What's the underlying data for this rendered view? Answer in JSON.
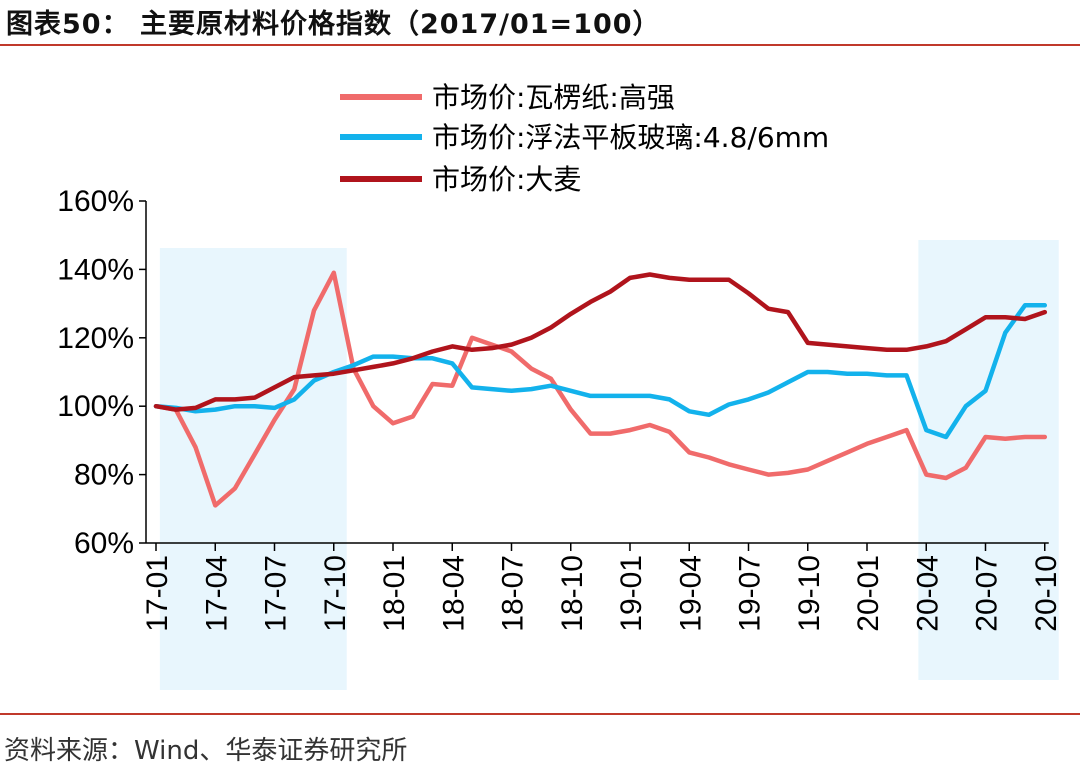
{
  "header": {
    "title": "图表50：   主要原材料价格指数（2017/01=100）"
  },
  "footer": {
    "source": "资料来源：Wind、华泰证券研究所"
  },
  "colors": {
    "series1": "#f06b6b",
    "series2": "#13b2ec",
    "series3": "#b0141c",
    "highlight": "#e8f6fd",
    "rule": "#c0392b"
  },
  "chart_data": {
    "type": "line",
    "ylim": [
      60,
      160
    ],
    "yticks": [
      "60%",
      "80%",
      "100%",
      "120%",
      "140%",
      "160%"
    ],
    "xtick_labels": [
      "17-01",
      "17-04",
      "17-07",
      "17-10",
      "18-01",
      "18-04",
      "18-07",
      "18-10",
      "19-01",
      "19-04",
      "19-07",
      "19-10",
      "20-01",
      "20-04",
      "20-07",
      "20-10"
    ],
    "highlight_ranges": [
      [
        "2017-02",
        "2017-10"
      ],
      [
        "2020-04",
        "2020-10"
      ]
    ],
    "legend_position": "top",
    "grid": false,
    "series": [
      {
        "name": "市场价:瓦楞纸:高强",
        "color": "#f06b6b",
        "points": [
          [
            "2017-01",
            100
          ],
          [
            "2017-02",
            99
          ],
          [
            "2017-03",
            88
          ],
          [
            "2017-04",
            71
          ],
          [
            "2017-05",
            76
          ],
          [
            "2017-06",
            86
          ],
          [
            "2017-07",
            96
          ],
          [
            "2017-08",
            105
          ],
          [
            "2017-09",
            128
          ],
          [
            "2017-10",
            139
          ],
          [
            "2017-11",
            111
          ],
          [
            "2017-12",
            100
          ],
          [
            "2018-01",
            95
          ],
          [
            "2018-02",
            97
          ],
          [
            "2018-03",
            106.5
          ],
          [
            "2018-04",
            106
          ],
          [
            "2018-05",
            120
          ],
          [
            "2018-06",
            118
          ],
          [
            "2018-07",
            116
          ],
          [
            "2018-08",
            111
          ],
          [
            "2018-09",
            108
          ],
          [
            "2018-10",
            99
          ],
          [
            "2018-11",
            92
          ],
          [
            "2018-12",
            92
          ],
          [
            "2019-01",
            93
          ],
          [
            "2019-02",
            94.5
          ],
          [
            "2019-03",
            92.5
          ],
          [
            "2019-04",
            86.5
          ],
          [
            "2019-05",
            85
          ],
          [
            "2019-06",
            83
          ],
          [
            "2019-07",
            81.5
          ],
          [
            "2019-08",
            80
          ],
          [
            "2019-09",
            80.5
          ],
          [
            "2019-10",
            81.5
          ],
          [
            "2019-11",
            84
          ],
          [
            "2019-12",
            86.5
          ],
          [
            "2020-01",
            89
          ],
          [
            "2020-02",
            91
          ],
          [
            "2020-03",
            93
          ],
          [
            "2020-04",
            80
          ],
          [
            "2020-05",
            79
          ],
          [
            "2020-06",
            82
          ],
          [
            "2020-07",
            91
          ],
          [
            "2020-08",
            90.5
          ],
          [
            "2020-09",
            91
          ],
          [
            "2020-10",
            91
          ]
        ]
      },
      {
        "name": "市场价:浮法平板玻璃:4.8/6mm",
        "color": "#13b2ec",
        "points": [
          [
            "2017-01",
            100
          ],
          [
            "2017-02",
            99.5
          ],
          [
            "2017-03",
            98.5
          ],
          [
            "2017-04",
            99
          ],
          [
            "2017-05",
            100
          ],
          [
            "2017-06",
            100
          ],
          [
            "2017-07",
            99.5
          ],
          [
            "2017-08",
            102
          ],
          [
            "2017-09",
            107.5
          ],
          [
            "2017-10",
            110
          ],
          [
            "2017-11",
            112
          ],
          [
            "2017-12",
            114.5
          ],
          [
            "2018-01",
            114.5
          ],
          [
            "2018-02",
            114
          ],
          [
            "2018-03",
            114
          ],
          [
            "2018-04",
            112.5
          ],
          [
            "2018-05",
            105.5
          ],
          [
            "2018-06",
            105
          ],
          [
            "2018-07",
            104.5
          ],
          [
            "2018-08",
            105
          ],
          [
            "2018-09",
            106
          ],
          [
            "2018-10",
            104.5
          ],
          [
            "2018-11",
            103
          ],
          [
            "2018-12",
            103
          ],
          [
            "2019-01",
            103
          ],
          [
            "2019-02",
            103
          ],
          [
            "2019-03",
            102
          ],
          [
            "2019-04",
            98.5
          ],
          [
            "2019-05",
            97.5
          ],
          [
            "2019-06",
            100.5
          ],
          [
            "2019-07",
            102
          ],
          [
            "2019-08",
            104
          ],
          [
            "2019-09",
            107
          ],
          [
            "2019-10",
            110
          ],
          [
            "2019-11",
            110
          ],
          [
            "2019-12",
            109.5
          ],
          [
            "2020-01",
            109.5
          ],
          [
            "2020-02",
            109
          ],
          [
            "2020-03",
            109
          ],
          [
            "2020-04",
            93
          ],
          [
            "2020-05",
            91
          ],
          [
            "2020-06",
            100
          ],
          [
            "2020-07",
            104.5
          ],
          [
            "2020-08",
            121.5
          ],
          [
            "2020-09",
            129.5
          ],
          [
            "2020-10",
            129.5
          ]
        ]
      },
      {
        "name": "市场价:大麦",
        "color": "#b0141c",
        "points": [
          [
            "2017-01",
            100
          ],
          [
            "2017-02",
            99
          ],
          [
            "2017-03",
            99.5
          ],
          [
            "2017-04",
            102
          ],
          [
            "2017-05",
            102
          ],
          [
            "2017-06",
            102.5
          ],
          [
            "2017-07",
            105.5
          ],
          [
            "2017-08",
            108.5
          ],
          [
            "2017-09",
            109
          ],
          [
            "2017-10",
            109.5
          ],
          [
            "2017-11",
            110.5
          ],
          [
            "2017-12",
            111.5
          ],
          [
            "2018-01",
            112.5
          ],
          [
            "2018-02",
            114
          ],
          [
            "2018-03",
            116
          ],
          [
            "2018-04",
            117.5
          ],
          [
            "2018-05",
            116.5
          ],
          [
            "2018-06",
            117
          ],
          [
            "2018-07",
            118
          ],
          [
            "2018-08",
            120
          ],
          [
            "2018-09",
            123
          ],
          [
            "2018-10",
            127
          ],
          [
            "2018-11",
            130.5
          ],
          [
            "2018-12",
            133.5
          ],
          [
            "2019-01",
            137.5
          ],
          [
            "2019-02",
            138.5
          ],
          [
            "2019-03",
            137.5
          ],
          [
            "2019-04",
            137
          ],
          [
            "2019-05",
            137
          ],
          [
            "2019-06",
            137
          ],
          [
            "2019-07",
            133
          ],
          [
            "2019-08",
            128.5
          ],
          [
            "2019-09",
            127.5
          ],
          [
            "2019-10",
            118.5
          ],
          [
            "2019-11",
            118
          ],
          [
            "2019-12",
            117.5
          ],
          [
            "2020-01",
            117
          ],
          [
            "2020-02",
            116.5
          ],
          [
            "2020-03",
            116.5
          ],
          [
            "2020-04",
            117.5
          ],
          [
            "2020-05",
            119
          ],
          [
            "2020-06",
            122.5
          ],
          [
            "2020-07",
            126
          ],
          [
            "2020-08",
            126
          ],
          [
            "2020-09",
            125.5
          ],
          [
            "2020-10",
            127.5
          ]
        ]
      }
    ]
  }
}
